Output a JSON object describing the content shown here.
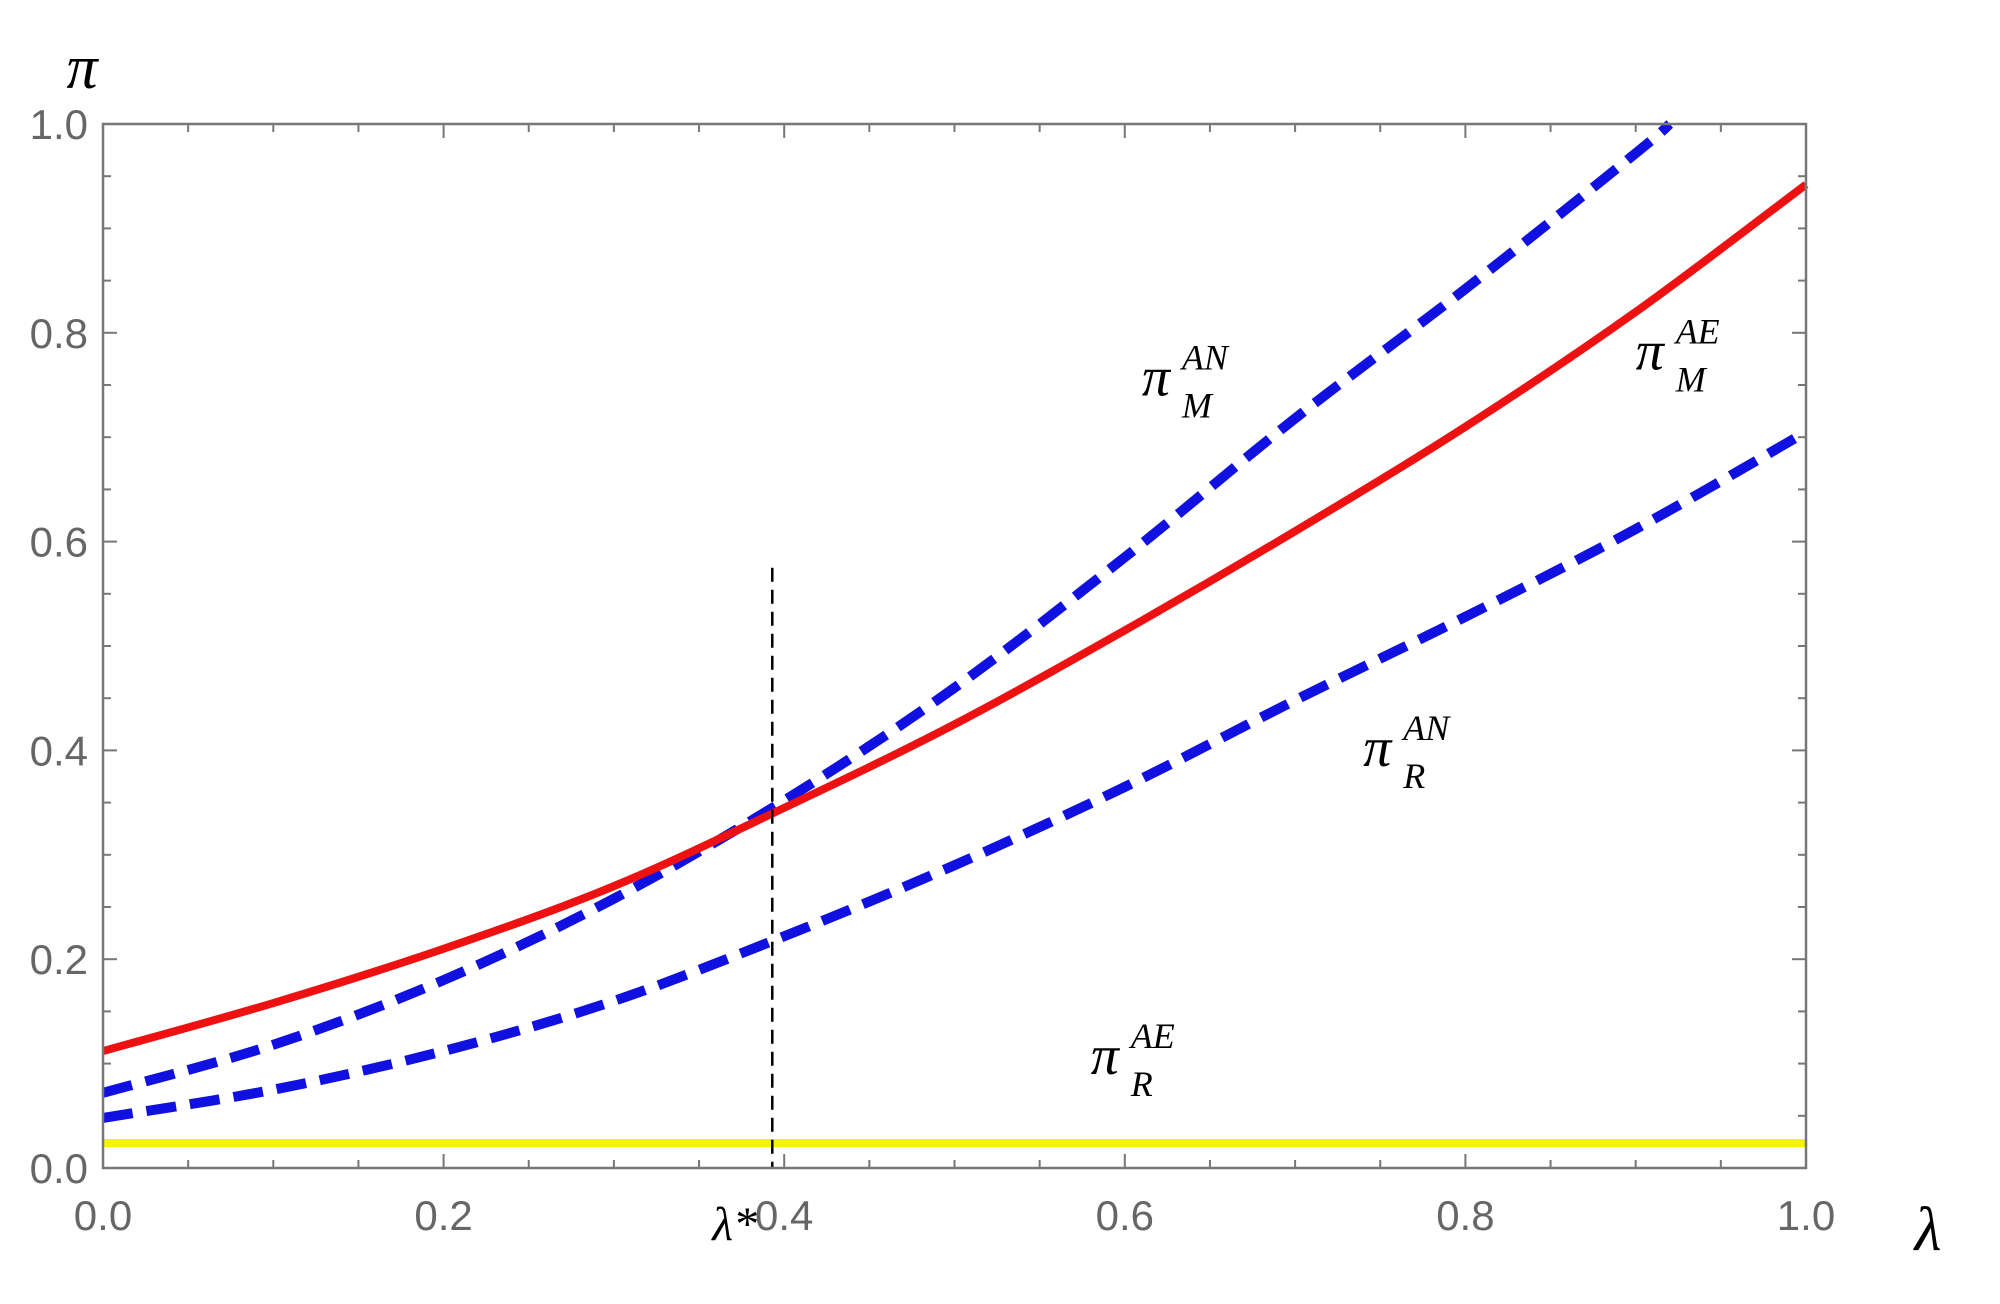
{
  "chart_data": {
    "type": "line",
    "xlabel": "λ",
    "ylabel": "π",
    "xlim": [
      0,
      1
    ],
    "ylim": [
      0,
      1
    ],
    "x_ticks": [
      "0.0",
      "0.2",
      "0.4",
      "0.6",
      "0.8",
      "1.0"
    ],
    "y_ticks": [
      "0.0",
      "0.2",
      "0.4",
      "0.6",
      "0.8",
      "1.0"
    ],
    "grid": false,
    "series": [
      {
        "key": "pm_an",
        "label_main": "π",
        "label_super": "AN",
        "label_sub": "M",
        "color": "#1010e0",
        "style": "dashed",
        "x": [
          0.0,
          0.1,
          0.2,
          0.3,
          0.4,
          0.5,
          0.6,
          0.7,
          0.8,
          0.9,
          0.92
        ],
        "y": [
          0.072,
          0.118,
          0.18,
          0.258,
          0.352,
          0.46,
          0.585,
          0.718,
          0.842,
          0.972,
          1.0
        ]
      },
      {
        "key": "pm_ae",
        "label_main": "π",
        "label_super": "AE",
        "label_sub": "M",
        "color": "#ee1111",
        "style": "solid",
        "x": [
          0.0,
          0.1,
          0.2,
          0.3,
          0.4,
          0.5,
          0.6,
          0.7,
          0.8,
          0.9,
          1.0
        ],
        "y": [
          0.112,
          0.158,
          0.21,
          0.27,
          0.345,
          0.425,
          0.515,
          0.61,
          0.71,
          0.82,
          0.942
        ]
      },
      {
        "key": "pr_an",
        "label_main": "π",
        "label_super": "AN",
        "label_sub": "R",
        "color": "#1010e0",
        "style": "dashed",
        "x": [
          0.0,
          0.1,
          0.2,
          0.3,
          0.4,
          0.5,
          0.6,
          0.7,
          0.8,
          0.9,
          1.0
        ],
        "y": [
          0.048,
          0.075,
          0.112,
          0.16,
          0.222,
          0.29,
          0.365,
          0.448,
          0.528,
          0.612,
          0.705
        ]
      },
      {
        "key": "pr_ae",
        "label_main": "π",
        "label_super": "AE",
        "label_sub": "R",
        "color": "#f5f500",
        "style": "solid",
        "x": [
          0.0,
          1.0
        ],
        "y": [
          0.024,
          0.024
        ]
      }
    ],
    "annotations": [
      {
        "type": "vline",
        "x": 0.393,
        "y_range": [
          0.0,
          0.575
        ],
        "style": "dashed",
        "color": "#000000",
        "label": "λ*"
      }
    ]
  }
}
